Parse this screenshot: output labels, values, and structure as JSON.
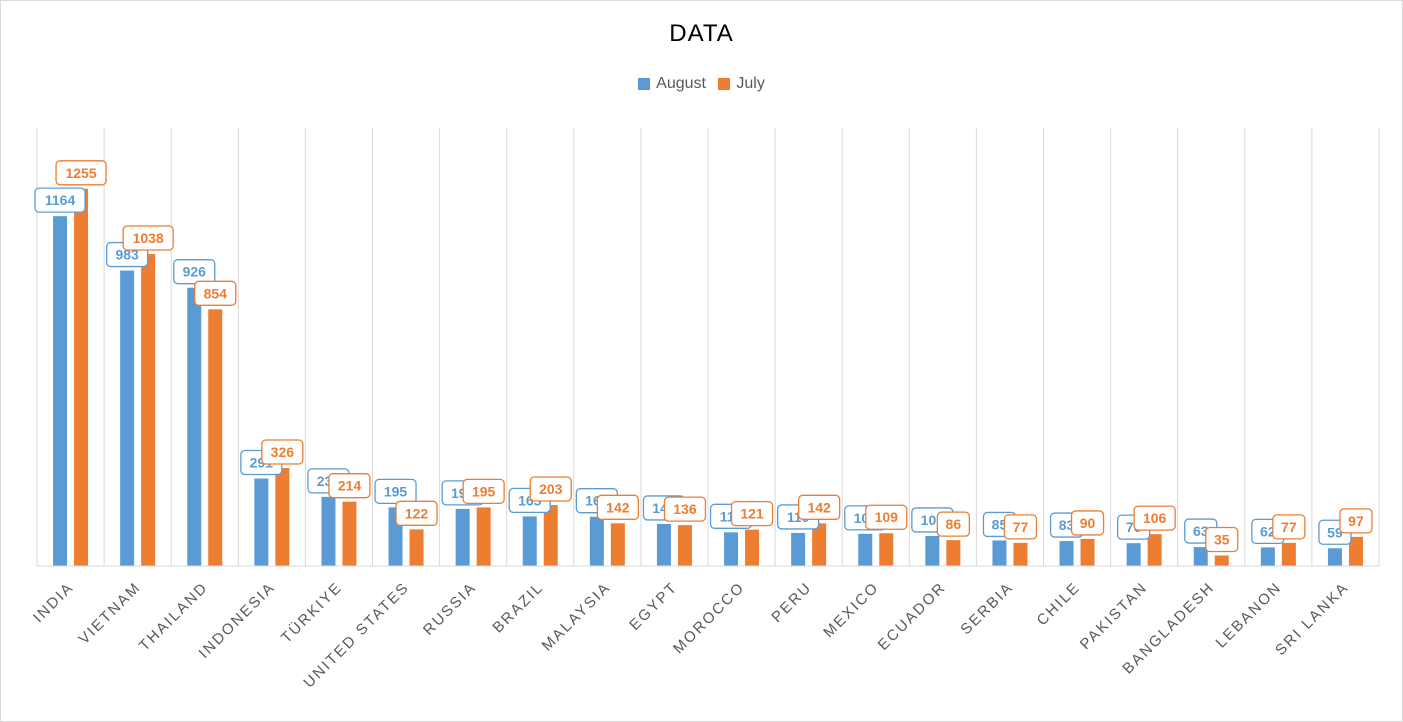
{
  "chart_data": {
    "type": "bar",
    "title": "DATA",
    "xlabel": "",
    "ylabel": "",
    "ylim": [
      0,
      1400
    ],
    "grid": "vertical category separators",
    "legend_position": "top",
    "categories": [
      "INDIA",
      "VIETNAM",
      "THAILAND",
      "INDONESIA",
      "TÜRKIYE",
      "UNITED STATES",
      "RUSSIA",
      "BRAZIL",
      "MALAYSIA",
      "EGYPT",
      "MOROCCO",
      "PERU",
      "MEXICO",
      "ECUADOR",
      "SERBIA",
      "CHILE",
      "PAKISTAN",
      "BANGLADESH",
      "LEBANON",
      "SRI LANKA"
    ],
    "series": [
      {
        "name": "August",
        "color": "#5b9bd5",
        "values": [
          1164,
          983,
          926,
          291,
          230,
          195,
          190,
          165,
          164,
          140,
          112,
          110,
          107,
          100,
          85,
          83,
          76,
          63,
          62,
          59
        ]
      },
      {
        "name": "July",
        "color": "#ed7d31",
        "values": [
          1255,
          1038,
          854,
          326,
          214,
          122,
          195,
          203,
          142,
          136,
          121,
          142,
          109,
          86,
          77,
          90,
          106,
          35,
          77,
          97
        ]
      }
    ]
  }
}
